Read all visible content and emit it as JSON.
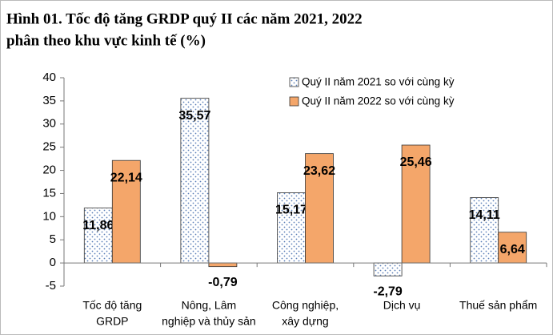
{
  "chart_data": {
    "type": "bar",
    "title": [
      "Hình 01. Tốc độ tăng GRDP quý II các năm 2021, 2022",
      "phân theo khu vực kinh tế (%)"
    ],
    "categories": [
      [
        "Tốc độ tăng",
        "GRDP"
      ],
      [
        "Nông, Lâm",
        "nghiệp và thủy sản"
      ],
      [
        "Công nghiệp,",
        "xây dựng"
      ],
      [
        "Dịch vụ"
      ],
      [
        "Thuế sản phẩm"
      ]
    ],
    "series": [
      {
        "name": "Quý II năm 2021 so với cùng kỳ",
        "color": "#ffffff",
        "pattern": "dots",
        "values": [
          11.86,
          35.57,
          15.17,
          -2.79,
          14.11
        ],
        "value_labels": [
          "11,86",
          "35,57",
          "15,17",
          "-2,79",
          "14,11"
        ]
      },
      {
        "name": "Quý II năm 2022 so với cùng kỳ",
        "color": "#f4a66a",
        "values": [
          22.14,
          -0.79,
          23.62,
          25.46,
          6.64
        ],
        "value_labels": [
          "22,14",
          "-0,79",
          "23,62",
          "25,46",
          "6,64"
        ]
      }
    ],
    "ylim": [
      -5,
      40
    ],
    "yticks": [
      -5,
      0,
      5,
      10,
      15,
      20,
      25,
      30,
      35,
      40
    ],
    "grid": false,
    "legend": "top-right"
  }
}
